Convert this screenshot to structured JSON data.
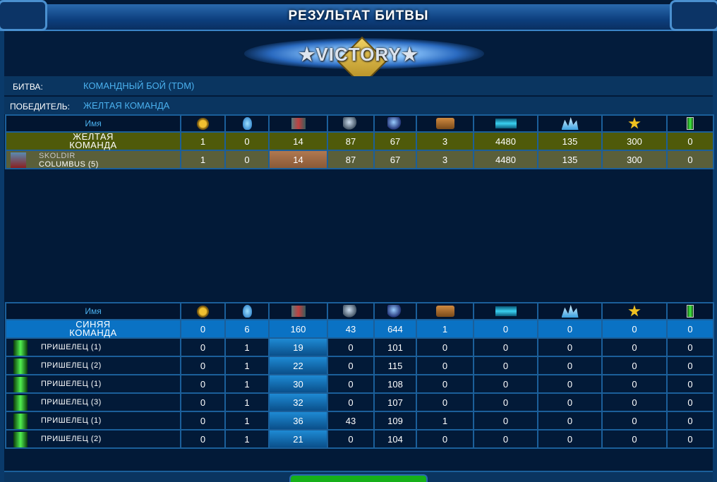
{
  "title": "РЕЗУЛЬТАТ БИТВЫ",
  "banner": "★VICTORY★",
  "battle": {
    "label": "БИТВА:",
    "value": "КОМАНДНЫЙ БОЙ (TDM)"
  },
  "winner": {
    "label": "ПОБЕДИТЕЛЬ:",
    "value": "ЖЕЛТАЯ КОМАНДА"
  },
  "columns": {
    "name": "Имя",
    "icons": [
      "medal-icon",
      "alien-skull-icon",
      "loot-crates-icon",
      "repair-plus-icon",
      "damage-minus-icon",
      "treasure-chest-icon",
      "credits-icon",
      "crystals-icon",
      "star-icon",
      "green-battery-icon"
    ]
  },
  "yellow": {
    "team": {
      "name1": "ЖЕЛТАЯ",
      "name2": "КОМАНДА",
      "values": [
        "1",
        "0",
        "14",
        "87",
        "67",
        "3",
        "4480",
        "135",
        "300",
        "0"
      ]
    },
    "players": [
      {
        "name1": "SKOLDIR",
        "name2": "COLUMBUS (5)",
        "values": [
          "1",
          "0",
          "14",
          "87",
          "67",
          "3",
          "4480",
          "135",
          "300",
          "0"
        ]
      }
    ]
  },
  "blue": {
    "team": {
      "name1": "СИНЯЯ",
      "name2": "КОМАНДА",
      "values": [
        "0",
        "6",
        "160",
        "43",
        "644",
        "1",
        "0",
        "0",
        "0",
        "0"
      ]
    },
    "players": [
      {
        "name": "ПРИШЕЛЕЦ (1)",
        "values": [
          "0",
          "1",
          "19",
          "0",
          "101",
          "0",
          "0",
          "0",
          "0",
          "0"
        ]
      },
      {
        "name": "ПРИШЕЛЕЦ (2)",
        "values": [
          "0",
          "1",
          "22",
          "0",
          "115",
          "0",
          "0",
          "0",
          "0",
          "0"
        ]
      },
      {
        "name": "ПРИШЕЛЕЦ (1)",
        "values": [
          "0",
          "1",
          "30",
          "0",
          "108",
          "0",
          "0",
          "0",
          "0",
          "0"
        ]
      },
      {
        "name": "ПРИШЕЛЕЦ (3)",
        "values": [
          "0",
          "1",
          "32",
          "0",
          "107",
          "0",
          "0",
          "0",
          "0",
          "0"
        ]
      },
      {
        "name": "ПРИШЕЛЕЦ (1)",
        "values": [
          "0",
          "1",
          "36",
          "43",
          "109",
          "1",
          "0",
          "0",
          "0",
          "0"
        ]
      },
      {
        "name": "ПРИШЕЛЕЦ (2)",
        "values": [
          "0",
          "1",
          "21",
          "0",
          "104",
          "0",
          "0",
          "0",
          "0",
          "0"
        ]
      }
    ]
  },
  "colors": {
    "yellow_team": "#4f5a0a",
    "blue_team": "#0a72c4",
    "accent": "#4ab0ee"
  }
}
